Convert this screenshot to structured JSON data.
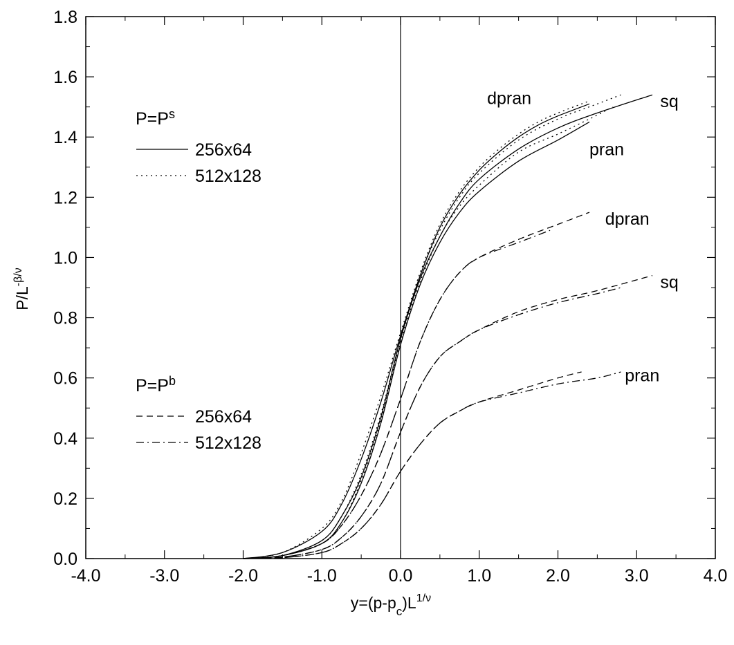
{
  "chart_data": {
    "type": "line",
    "title": "",
    "xlabel": {
      "main": "y=(p-p",
      "sub": "c",
      "mid": ")L",
      "sup": "1/ν"
    },
    "ylabel": {
      "main": "P/L",
      "sup": "-β/ν"
    },
    "xlim": [
      -4.0,
      4.0
    ],
    "ylim": [
      0.0,
      1.8
    ],
    "x_ticks": [
      "-4.0",
      "-3.0",
      "-2.0",
      "-1.0",
      "0.0",
      "1.0",
      "2.0",
      "3.0",
      "4.0"
    ],
    "y_ticks": [
      "0.0",
      "0.2",
      "0.4",
      "0.6",
      "0.8",
      "1.0",
      "1.2",
      "1.4",
      "1.6",
      "1.8"
    ],
    "vertical_line_x": 0.0,
    "grid": false,
    "legend": {
      "groups": [
        {
          "title_main": "P=P",
          "title_sup": "s",
          "entries": [
            {
              "label": "256x64",
              "style": "solid"
            },
            {
              "label": "512x128",
              "style": "dotted"
            }
          ]
        },
        {
          "title_main": "P=P",
          "title_sup": "b",
          "entries": [
            {
              "label": "256x64",
              "style": "dashed"
            },
            {
              "label": "512x128",
              "style": "dashdot"
            }
          ]
        }
      ]
    },
    "annotations": [
      {
        "text": "dpran",
        "x": 1.1,
        "y": 1.53
      },
      {
        "text": "sq",
        "x": 3.3,
        "y": 1.52
      },
      {
        "text": "pran",
        "x": 2.4,
        "y": 1.36
      },
      {
        "text": "dpran",
        "x": 2.6,
        "y": 1.13
      },
      {
        "text": "sq",
        "x": 3.3,
        "y": 0.92
      },
      {
        "text": "pran",
        "x": 2.85,
        "y": 0.61
      }
    ],
    "series": [
      {
        "lattice": "dpran",
        "quantity": "Ps",
        "size": "256x64",
        "style": "solid",
        "x": [
          -2.0,
          -1.5,
          -1.0,
          -0.75,
          -0.5,
          -0.25,
          0.0,
          0.25,
          0.5,
          0.75,
          1.0,
          1.25,
          1.5,
          1.75,
          2.0,
          2.4
        ],
        "y": [
          0.0,
          0.02,
          0.09,
          0.18,
          0.33,
          0.52,
          0.74,
          0.94,
          1.1,
          1.21,
          1.29,
          1.35,
          1.4,
          1.44,
          1.47,
          1.51
        ]
      },
      {
        "lattice": "dpran",
        "quantity": "Ps",
        "size": "512x128",
        "style": "dotted",
        "x": [
          -2.0,
          -1.5,
          -1.0,
          -0.75,
          -0.5,
          -0.25,
          0.0,
          0.25,
          0.5,
          0.75,
          1.0,
          1.25,
          1.5,
          1.75,
          2.0,
          2.4
        ],
        "y": [
          0.0,
          0.02,
          0.1,
          0.19,
          0.35,
          0.54,
          0.75,
          0.95,
          1.11,
          1.22,
          1.3,
          1.36,
          1.41,
          1.45,
          1.48,
          1.52
        ]
      },
      {
        "lattice": "sq",
        "quantity": "Ps",
        "size": "256x64",
        "style": "solid",
        "x": [
          -2.0,
          -1.5,
          -1.0,
          -0.75,
          -0.5,
          -0.25,
          0.0,
          0.25,
          0.5,
          0.75,
          1.0,
          1.5,
          2.0,
          2.5,
          3.2
        ],
        "y": [
          0.0,
          0.01,
          0.06,
          0.14,
          0.27,
          0.47,
          0.73,
          0.93,
          1.07,
          1.18,
          1.26,
          1.36,
          1.43,
          1.48,
          1.54
        ]
      },
      {
        "lattice": "sq",
        "quantity": "Ps",
        "size": "512x128",
        "style": "dotted",
        "x": [
          -2.0,
          -1.5,
          -1.0,
          -0.75,
          -0.5,
          -0.25,
          0.0,
          0.25,
          0.5,
          0.75,
          1.0,
          1.5,
          2.0,
          2.5,
          2.8
        ],
        "y": [
          0.0,
          0.01,
          0.06,
          0.14,
          0.28,
          0.48,
          0.73,
          0.94,
          1.09,
          1.2,
          1.28,
          1.39,
          1.46,
          1.51,
          1.54
        ]
      },
      {
        "lattice": "pran",
        "quantity": "Ps",
        "size": "256x64",
        "style": "solid",
        "x": [
          -2.0,
          -1.5,
          -1.0,
          -0.75,
          -0.5,
          -0.25,
          0.0,
          0.25,
          0.5,
          0.75,
          1.0,
          1.5,
          2.0,
          2.4
        ],
        "y": [
          0.0,
          0.01,
          0.05,
          0.12,
          0.25,
          0.45,
          0.71,
          0.91,
          1.05,
          1.15,
          1.22,
          1.32,
          1.39,
          1.45
        ]
      },
      {
        "lattice": "pran",
        "quantity": "Ps",
        "size": "512x128",
        "style": "dotted",
        "x": [
          -2.0,
          -1.5,
          -1.0,
          -0.75,
          -0.5,
          -0.25,
          0.0,
          0.25,
          0.5,
          0.75,
          1.0,
          1.5,
          2.0,
          2.4,
          2.7
        ],
        "y": [
          0.0,
          0.01,
          0.05,
          0.12,
          0.26,
          0.46,
          0.72,
          0.92,
          1.07,
          1.17,
          1.24,
          1.35,
          1.41,
          1.46,
          1.5
        ]
      },
      {
        "lattice": "dpran",
        "quantity": "Pb",
        "size": "256x64",
        "style": "dashed",
        "x": [
          -2.0,
          -1.5,
          -1.0,
          -0.75,
          -0.5,
          -0.25,
          0.0,
          0.25,
          0.5,
          0.75,
          1.0,
          1.5,
          2.0,
          2.4
        ],
        "y": [
          0.0,
          0.01,
          0.05,
          0.11,
          0.21,
          0.35,
          0.53,
          0.72,
          0.86,
          0.95,
          1.0,
          1.06,
          1.11,
          1.15
        ]
      },
      {
        "lattice": "dpran",
        "quantity": "Pb",
        "size": "512x128",
        "style": "dashdot",
        "x": [
          -2.0,
          -1.5,
          -1.0,
          -0.75,
          -0.5,
          -0.25,
          0.0,
          0.25,
          0.5,
          0.75,
          1.0,
          1.5,
          1.9
        ],
        "y": [
          0.0,
          0.01,
          0.05,
          0.11,
          0.21,
          0.35,
          0.53,
          0.72,
          0.86,
          0.95,
          1.0,
          1.05,
          1.09
        ]
      },
      {
        "lattice": "sq",
        "quantity": "Pb",
        "size": "256x64",
        "style": "dashed",
        "x": [
          -2.0,
          -1.5,
          -1.0,
          -0.75,
          -0.5,
          -0.25,
          0.0,
          0.25,
          0.5,
          0.75,
          1.0,
          1.5,
          2.0,
          2.5,
          3.2
        ],
        "y": [
          0.0,
          0.005,
          0.03,
          0.07,
          0.14,
          0.25,
          0.42,
          0.57,
          0.67,
          0.72,
          0.76,
          0.82,
          0.86,
          0.89,
          0.94
        ]
      },
      {
        "lattice": "sq",
        "quantity": "Pb",
        "size": "512x128",
        "style": "dashdot",
        "x": [
          -2.0,
          -1.5,
          -1.0,
          -0.75,
          -0.5,
          -0.25,
          0.0,
          0.25,
          0.5,
          0.75,
          1.0,
          1.5,
          2.0,
          2.5,
          2.8
        ],
        "y": [
          0.0,
          0.005,
          0.03,
          0.07,
          0.14,
          0.25,
          0.42,
          0.57,
          0.67,
          0.72,
          0.76,
          0.81,
          0.85,
          0.88,
          0.9
        ]
      },
      {
        "lattice": "pran",
        "quantity": "Pb",
        "size": "256x64",
        "style": "dashed",
        "x": [
          -2.0,
          -1.5,
          -1.0,
          -0.75,
          -0.5,
          -0.25,
          0.0,
          0.25,
          0.5,
          0.75,
          1.0,
          1.5,
          2.0,
          2.3
        ],
        "y": [
          0.0,
          0.003,
          0.02,
          0.05,
          0.1,
          0.18,
          0.29,
          0.38,
          0.45,
          0.49,
          0.52,
          0.56,
          0.6,
          0.62
        ]
      },
      {
        "lattice": "pran",
        "quantity": "Pb",
        "size": "512x128",
        "style": "dashdot",
        "x": [
          -2.0,
          -1.5,
          -1.0,
          -0.75,
          -0.5,
          -0.25,
          0.0,
          0.25,
          0.5,
          0.75,
          1.0,
          1.5,
          2.0,
          2.5,
          2.8
        ],
        "y": [
          0.0,
          0.003,
          0.02,
          0.05,
          0.1,
          0.18,
          0.29,
          0.38,
          0.45,
          0.49,
          0.52,
          0.55,
          0.58,
          0.6,
          0.62
        ]
      }
    ]
  }
}
